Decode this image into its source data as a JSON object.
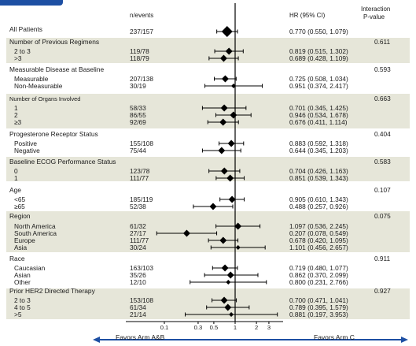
{
  "header": {
    "col_events": "n/events",
    "col_hr": "HR (95% CI)",
    "col_pvalue_line1": "Interaction",
    "col_pvalue_line2": "P-value"
  },
  "footer": {
    "favors_left": "Favors Arm A&B",
    "favors_right": "Favors Arm C",
    "accent_color": "#1d4fa3"
  },
  "colors": {
    "shade": "#e6e6d9",
    "marker": "#000000"
  },
  "chart_data": {
    "type": "forest",
    "x_scale": "log",
    "xlim": [
      0.05,
      4.2
    ],
    "reference_line": 1,
    "x_ticks": [
      {
        "value": 0.1,
        "label": "0.1"
      },
      {
        "value": 0.3,
        "label": "0.3"
      },
      {
        "value": 0.5,
        "label": "0.5"
      },
      {
        "value": 1,
        "label": "1"
      },
      {
        "value": 2,
        "label": "2"
      },
      {
        "value": 3,
        "label": "3"
      }
    ],
    "groups": [
      {
        "label": "All Patients",
        "shaded": false,
        "pvalue": "",
        "rows": [
          {
            "label": "",
            "events": "237/157",
            "hr_text": "0.770 (0.550, 1.079)",
            "hr": 0.77,
            "lo": 0.55,
            "hi": 1.079
          }
        ]
      },
      {
        "label": "Number of Previous Regimens",
        "shaded": true,
        "pvalue": "0.611",
        "rows": [
          {
            "label": "2 to 3",
            "events": "119/78",
            "hr_text": "0.819 (0.515, 1.302)",
            "hr": 0.819,
            "lo": 0.515,
            "hi": 1.302
          },
          {
            "label": ">3",
            "events": "118/79",
            "hr_text": "0.689 (0.428, 1.109)",
            "hr": 0.689,
            "lo": 0.428,
            "hi": 1.109
          }
        ]
      },
      {
        "label": "Measurable Disease at Baseline",
        "shaded": false,
        "pvalue": "0.593",
        "rows": [
          {
            "label": "Measurable",
            "events": "207/138",
            "hr_text": "0.725 (0.508, 1.034)",
            "hr": 0.725,
            "lo": 0.508,
            "hi": 1.034
          },
          {
            "label": "Non-Measurable",
            "events": "30/19",
            "hr_text": "0.951 (0.374, 2.417)",
            "hr": 0.951,
            "lo": 0.374,
            "hi": 2.417
          }
        ]
      },
      {
        "label": "Number of Organs Involved",
        "shaded": true,
        "pvalue": "0.663",
        "small_label": true,
        "rows": [
          {
            "label": "1",
            "events": "58/33",
            "hr_text": "0.701 (0.345, 1.425)",
            "hr": 0.701,
            "lo": 0.345,
            "hi": 1.425
          },
          {
            "label": "2",
            "events": "86/55",
            "hr_text": "0.946 (0.534, 1.678)",
            "hr": 0.946,
            "lo": 0.534,
            "hi": 1.678
          },
          {
            "label": "≥3",
            "events": "92/69",
            "hr_text": "0.676 (0.411, 1.114)",
            "hr": 0.676,
            "lo": 0.411,
            "hi": 1.114
          }
        ]
      },
      {
        "label": "Progesterone Receptor Status",
        "shaded": false,
        "pvalue": "0.404",
        "rows": [
          {
            "label": "Positive",
            "events": "155/108",
            "hr_text": "0.883 (0.592, 1.318)",
            "hr": 0.883,
            "lo": 0.592,
            "hi": 1.318
          },
          {
            "label": "Negative",
            "events": "75/44",
            "hr_text": "0.644 (0.345, 1.203)",
            "hr": 0.644,
            "lo": 0.345,
            "hi": 1.203
          }
        ]
      },
      {
        "label": "Baseline ECOG Performance Status",
        "shaded": true,
        "pvalue": "0.583",
        "rows": [
          {
            "label": "0",
            "events": "123/78",
            "hr_text": "0.704 (0.426, 1.163)",
            "hr": 0.704,
            "lo": 0.426,
            "hi": 1.163
          },
          {
            "label": "1",
            "events": "111/77",
            "hr_text": "0.851 (0.539, 1.343)",
            "hr": 0.851,
            "lo": 0.539,
            "hi": 1.343
          }
        ]
      },
      {
        "label": "Age",
        "shaded": false,
        "pvalue": "0.107",
        "rows": [
          {
            "label": "<65",
            "events": "185/119",
            "hr_text": "0.905 (0.610, 1.343)",
            "hr": 0.905,
            "lo": 0.61,
            "hi": 1.343
          },
          {
            "label": "≥65",
            "events": "52/38",
            "hr_text": "0.488 (0.257, 0.926)",
            "hr": 0.488,
            "lo": 0.257,
            "hi": 0.926
          }
        ]
      },
      {
        "label": "Region",
        "shaded": true,
        "pvalue": "0.075",
        "rows": [
          {
            "label": "North America",
            "events": "61/32",
            "hr_text": "1.097 (0.536, 2.245)",
            "hr": 1.097,
            "lo": 0.536,
            "hi": 2.245
          },
          {
            "label": "South America",
            "events": "27/17",
            "hr_text": "0.207 (0.078, 0.549)",
            "hr": 0.207,
            "lo": 0.078,
            "hi": 0.549
          },
          {
            "label": "Europe",
            "events": "111/77",
            "hr_text": "0.678 (0.420, 1.095)",
            "hr": 0.678,
            "lo": 0.42,
            "hi": 1.095
          },
          {
            "label": "Asia",
            "events": "30/24",
            "hr_text": "1.101 (0.456, 2.657)",
            "hr": 1.101,
            "lo": 0.456,
            "hi": 2.657
          }
        ]
      },
      {
        "label": "Race",
        "shaded": false,
        "pvalue": "0.911",
        "rows": [
          {
            "label": "Caucasian",
            "events": "163/103",
            "hr_text": "0.719 (0.480, 1.077)",
            "hr": 0.719,
            "lo": 0.48,
            "hi": 1.077
          },
          {
            "label": "Asian",
            "events": "35/26",
            "hr_text": "0.862 (0.370, 2.099)",
            "hr": 0.862,
            "lo": 0.37,
            "hi": 2.099
          },
          {
            "label": "Other",
            "events": "12/10",
            "hr_text": "0.800 (0.231, 2.766)",
            "hr": 0.8,
            "lo": 0.231,
            "hi": 2.766
          }
        ]
      },
      {
        "label": "Prior HER2 Directed Therapy",
        "shaded": true,
        "pvalue": "0.927",
        "rows": [
          {
            "label": "2 to 3",
            "events": "153/108",
            "hr_text": "0.700 (0.471, 1.041)",
            "hr": 0.7,
            "lo": 0.471,
            "hi": 1.041
          },
          {
            "label": "4 to 5",
            "events": "61/34",
            "hr_text": "0.789 (0.395, 1.579)",
            "hr": 0.789,
            "lo": 0.395,
            "hi": 1.579
          },
          {
            "label": ">5",
            "events": "21/14",
            "hr_text": "0.881 (0.197, 3.953)",
            "hr": 0.881,
            "lo": 0.197,
            "hi": 3.953
          }
        ]
      }
    ]
  }
}
